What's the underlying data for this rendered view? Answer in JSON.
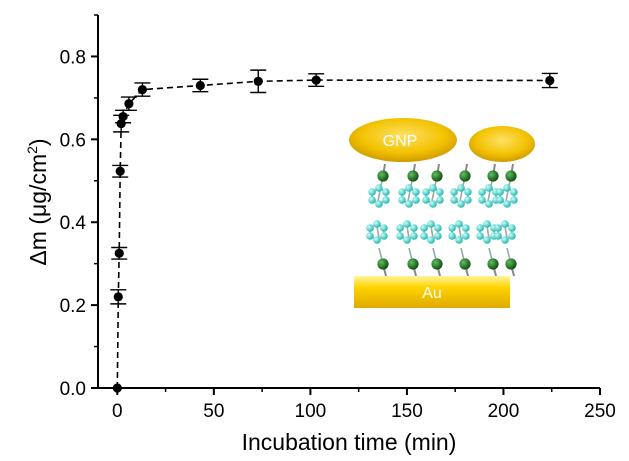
{
  "chart_data": {
    "type": "scatter",
    "xlabel": "Incubation time (min)",
    "ylabel_main": "Δm (μg/cm",
    "ylabel_sup": "2",
    "ylabel_close": ")",
    "xlim": [
      -10,
      250
    ],
    "ylim": [
      0,
      0.9
    ],
    "xticks": [
      0,
      50,
      100,
      150,
      200,
      250
    ],
    "yticks": [
      0.0,
      0.2,
      0.4,
      0.6,
      0.8
    ],
    "ytick_labels": [
      "0.0",
      "0.2",
      "0.4",
      "0.6",
      "0.8"
    ],
    "line_style": "dashed",
    "series": [
      {
        "points": [
          {
            "x": 0,
            "y": 0.0,
            "err": 0.0
          },
          {
            "x": 0.5,
            "y": 0.22,
            "err": 0.017
          },
          {
            "x": 1,
            "y": 0.325,
            "err": 0.014
          },
          {
            "x": 1.5,
            "y": 0.523,
            "err": 0.014
          },
          {
            "x": 2,
            "y": 0.638,
            "err": 0.02
          },
          {
            "x": 3,
            "y": 0.655,
            "err": 0.015
          },
          {
            "x": 6,
            "y": 0.686,
            "err": 0.016
          },
          {
            "x": 13,
            "y": 0.72,
            "err": 0.016
          },
          {
            "x": 43,
            "y": 0.73,
            "err": 0.015
          },
          {
            "x": 73,
            "y": 0.74,
            "err": 0.027
          },
          {
            "x": 103,
            "y": 0.743,
            "err": 0.015
          },
          {
            "x": 224,
            "y": 0.742,
            "err": 0.017
          }
        ]
      }
    ]
  },
  "inset": {
    "nanoparticle_label": "GNP",
    "substrate_label": "Au",
    "colors": {
      "gold": "#f2c200",
      "gold_dark": "#c79200",
      "substrate": "#ffd400",
      "carbon": "#35c9c0",
      "sulfur": "#1e6b1e"
    }
  }
}
